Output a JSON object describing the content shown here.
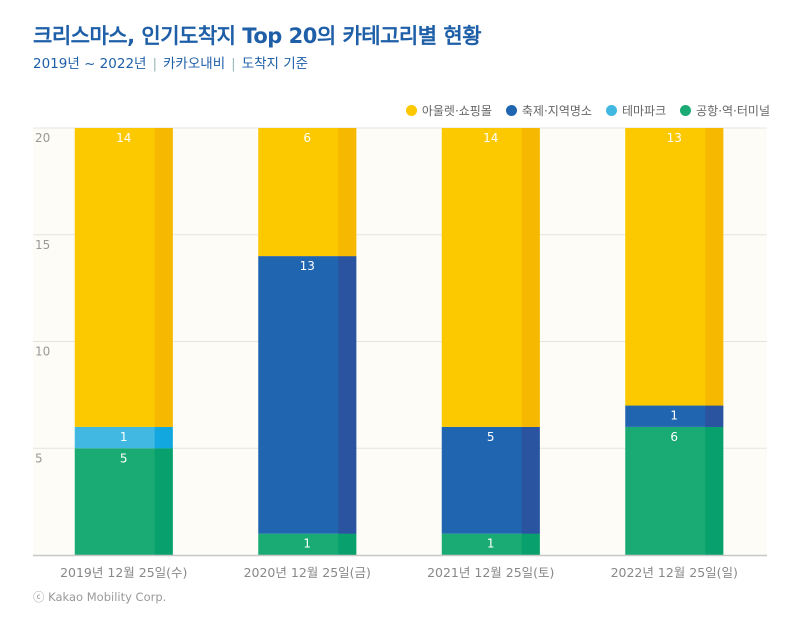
{
  "title": "크리스마스, 인기도착지 Top 20의 카테고리별 현황",
  "subtitle": [
    "2019년 ~ 2022년",
    "카카오내비",
    "도착지 기준"
  ],
  "credit": "ⓒ Kakao Mobility Corp.",
  "chart_data": {
    "type": "bar",
    "stacked": true,
    "categories": [
      "2019년 12월 25일(수)",
      "2020년 12월 25일(금)",
      "2021년 12월 25일(토)",
      "2022년 12월 25일(일)"
    ],
    "series": [
      {
        "name": "공항·역·터미널",
        "values": [
          5,
          1,
          1,
          6
        ],
        "color": "#1aab74",
        "shade": "#08a06c"
      },
      {
        "name": "테마파크",
        "values": [
          1,
          0,
          0,
          0
        ],
        "color": "#40b8e2",
        "shade": "#12a8df"
      },
      {
        "name": "축제·지역명소",
        "values": [
          0,
          13,
          5,
          1
        ],
        "color": "#1f65b0",
        "shade": "#2b54a0"
      },
      {
        "name": "아울렛·쇼핑몰",
        "values": [
          14,
          6,
          14,
          13
        ],
        "color": "#fcc800",
        "shade": "#f6b800"
      }
    ],
    "legend_order": [
      "아울렛·쇼핑몰",
      "축제·지역명소",
      "테마파크",
      "공항·역·터미널"
    ],
    "legend_position": "top-right",
    "ylim": [
      0,
      20
    ],
    "yticks": [
      5,
      10,
      15,
      20
    ],
    "grid": true,
    "xlabel": "",
    "ylabel": ""
  }
}
